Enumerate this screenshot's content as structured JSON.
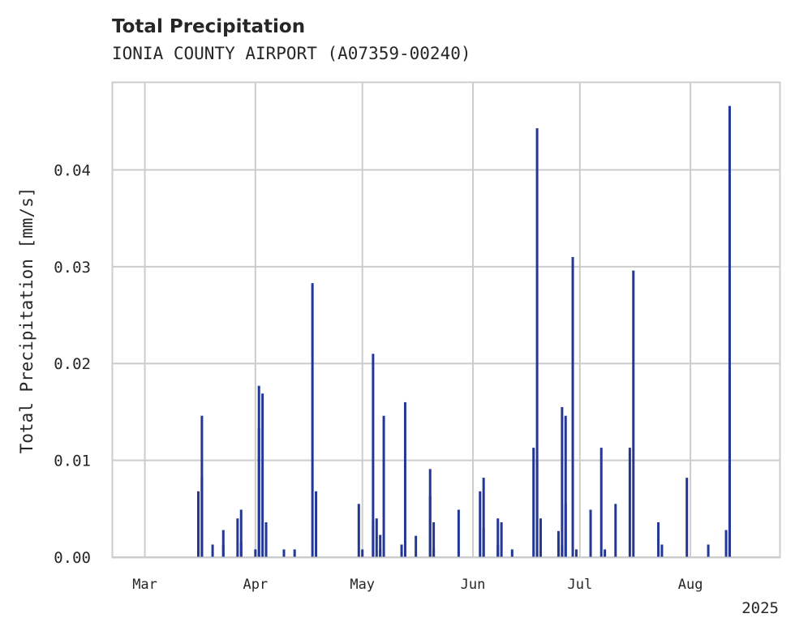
{
  "chart_data": {
    "type": "bar",
    "title": "Total Precipitation",
    "subtitle": "IONIA COUNTY AIRPORT (A07359-00240)",
    "xlabel": "",
    "ylabel": "Total Precipitation [mm/s]",
    "x_axis": {
      "type": "date",
      "range": [
        "2025-02-20",
        "2025-08-26"
      ],
      "tick_labels": [
        {
          "date": "2025-03-01",
          "label": "Mar"
        },
        {
          "date": "2025-04-01",
          "label": "Apr"
        },
        {
          "date": "2025-05-01",
          "label": "May"
        },
        {
          "date": "2025-06-01",
          "label": "Jun"
        },
        {
          "date": "2025-07-01",
          "label": "Jul"
        },
        {
          "date": "2025-08-01",
          "label": "Aug"
        }
      ],
      "offset_label": "2025"
    },
    "y_axis": {
      "range": [
        0,
        0.049
      ],
      "ticks": [
        0,
        0.01,
        0.02,
        0.03,
        0.04
      ],
      "tick_labels": [
        "0.00",
        "0.01",
        "0.02",
        "0.03",
        "0.04"
      ]
    },
    "grid": true,
    "bar_color": "#243796",
    "series": [
      {
        "x": [
          "2025-03-16",
          "2025-03-16",
          "2025-03-17",
          "2025-03-17",
          "2025-03-20",
          "2025-03-23",
          "2025-03-23",
          "2025-03-27",
          "2025-03-28",
          "2025-03-28",
          "2025-04-01",
          "2025-04-02",
          "2025-04-02",
          "2025-04-03",
          "2025-04-04",
          "2025-04-04",
          "2025-04-09",
          "2025-04-12",
          "2025-04-17",
          "2025-04-18",
          "2025-04-30",
          "2025-05-01",
          "2025-05-04",
          "2025-05-04",
          "2025-05-05",
          "2025-05-06",
          "2025-05-06",
          "2025-05-07",
          "2025-05-12",
          "2025-05-13",
          "2025-05-16",
          "2025-05-20",
          "2025-05-20",
          "2025-05-21",
          "2025-05-21",
          "2025-05-28",
          "2025-06-03",
          "2025-06-04",
          "2025-06-04",
          "2025-06-08",
          "2025-06-08",
          "2025-06-09",
          "2025-06-12",
          "2025-06-18",
          "2025-06-19",
          "2025-06-19",
          "2025-06-20",
          "2025-06-25",
          "2025-06-25",
          "2025-06-26",
          "2025-06-26",
          "2025-06-27",
          "2025-06-27",
          "2025-06-29",
          "2025-06-30",
          "2025-07-04",
          "2025-07-07",
          "2025-07-08",
          "2025-07-11",
          "2025-07-15",
          "2025-07-16",
          "2025-07-23",
          "2025-07-24",
          "2025-07-31",
          "2025-08-06",
          "2025-08-11",
          "2025-08-12",
          "2025-08-12"
        ],
        "values": [
          0.0068,
          0.001,
          0.0146,
          0.0082,
          0.0013,
          0.0028,
          0.0013,
          0.004,
          0.0015,
          0.0049,
          0.0008,
          0.0133,
          0.0177,
          0.0169,
          0.0015,
          0.0036,
          0.0008,
          0.0008,
          0.0283,
          0.0068,
          0.0055,
          0.0008,
          0.0038,
          0.021,
          0.004,
          0.0023,
          0.0008,
          0.0146,
          0.0013,
          0.016,
          0.0022,
          0.0063,
          0.0091,
          0.0036,
          0.0008,
          0.0049,
          0.0068,
          0.0082,
          0.003,
          0.004,
          0.0013,
          0.0036,
          0.0008,
          0.0113,
          0.0443,
          0.01,
          0.004,
          0.0023,
          0.0027,
          0.0012,
          0.0155,
          0.0055,
          0.0146,
          0.031,
          0.0008,
          0.0049,
          0.0113,
          0.0008,
          0.0055,
          0.0113,
          0.0296,
          0.0036,
          0.0013,
          0.0082,
          0.0013,
          0.0028,
          0.0191,
          0.0466
        ]
      }
    ]
  }
}
